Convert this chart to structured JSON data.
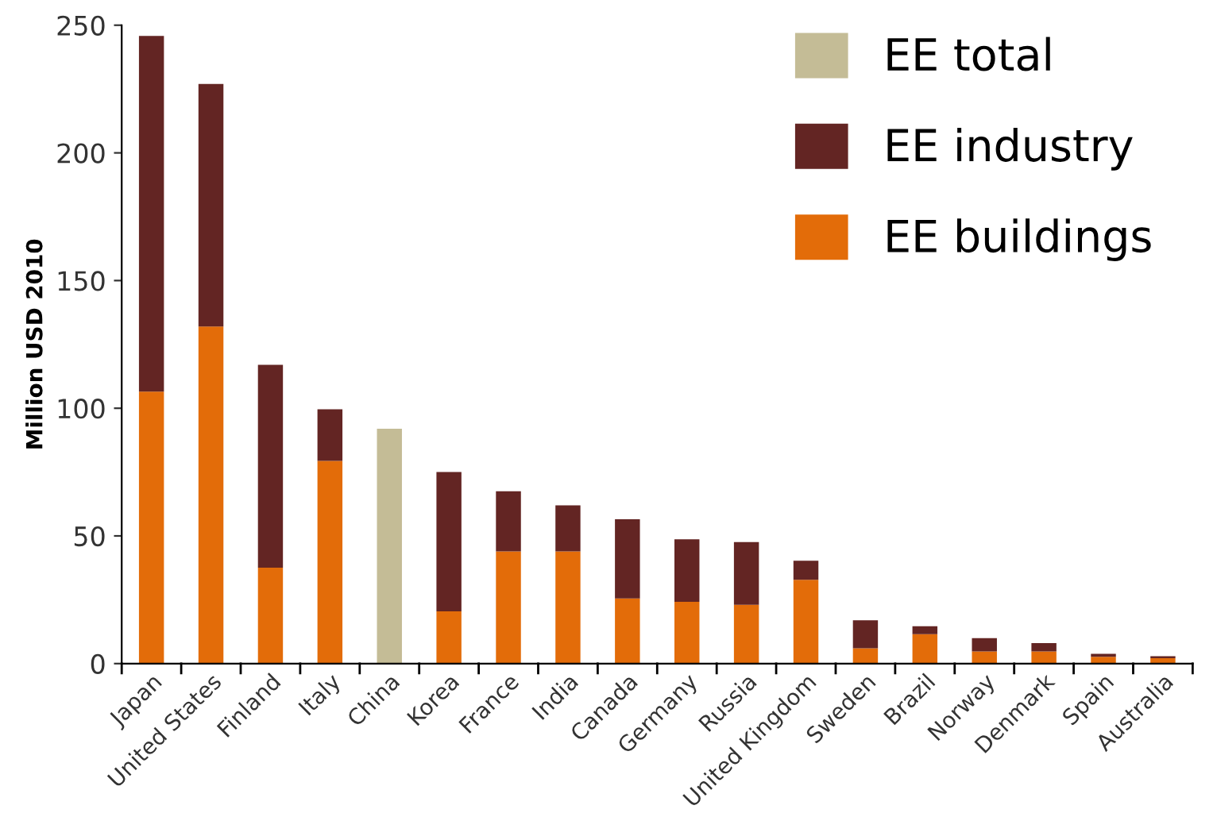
{
  "chart_data": {
    "type": "bar",
    "stacked": true,
    "ylabel": "Million USD 2010",
    "categories": [
      "Japan",
      "United States",
      "Finland",
      "Italy",
      "China",
      "Korea",
      "France",
      "India",
      "Canada",
      "Germany",
      "Russia",
      "United Kingdom",
      "Sweden",
      "Brazil",
      "Norway",
      "Denmark",
      "Spain",
      "Australia"
    ],
    "series": [
      {
        "name": "EE buildings",
        "color": "#e36c09",
        "values": [
          106.5,
          132,
          37.6,
          79.4,
          null,
          20.5,
          43.9,
          43.9,
          25.5,
          24.2,
          23,
          32.8,
          6,
          11.5,
          4.8,
          4.8,
          2.7,
          2.1
        ]
      },
      {
        "name": "EE industry",
        "color": "#632523",
        "values": [
          139.3,
          95,
          79.4,
          20.2,
          null,
          54.5,
          23.6,
          18.1,
          31,
          24.5,
          24.6,
          7.5,
          11,
          3.1,
          5.2,
          3.2,
          1.1,
          0.8
        ]
      },
      {
        "name": "EE total",
        "color": "#c4bc96",
        "values": [
          null,
          null,
          null,
          null,
          92,
          null,
          null,
          null,
          null,
          null,
          null,
          null,
          null,
          null,
          null,
          null,
          null,
          null
        ]
      }
    ],
    "ylim": [
      0,
      250
    ],
    "yticks": [
      0,
      50,
      100,
      150,
      200,
      250
    ],
    "grid": false,
    "legend": "top right"
  }
}
